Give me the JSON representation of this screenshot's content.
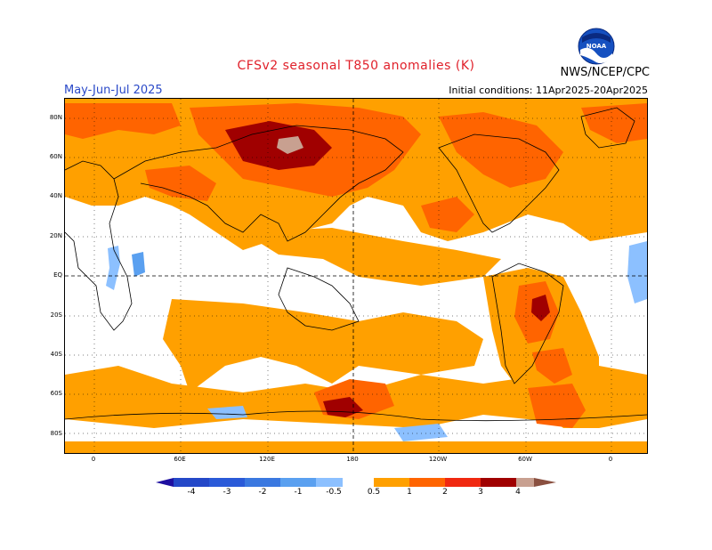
{
  "header": {
    "title": "CFSv2 seasonal T850 anomalies (K)",
    "season": "May-Jun-Jul 2025",
    "initial_conditions": "Initial conditions: 11Apr2025-20Apr2025",
    "agency": "NWS/NCEP/CPC",
    "logo_text": "NOAA",
    "logo_icon": "noaa-logo"
  },
  "axes": {
    "lat_labels": [
      "80N",
      "60N",
      "40N",
      "20N",
      "EQ",
      "20S",
      "40S",
      "60S",
      "80S"
    ],
    "lon_labels": [
      "0",
      "60E",
      "120E",
      "180",
      "120W",
      "60W",
      "0"
    ]
  },
  "legend": {
    "labels": [
      "-4",
      "-3",
      "-2",
      "-1",
      "-0.5",
      "0.5",
      "1",
      "2",
      "3",
      "4"
    ],
    "colors": {
      "n4": "#1e0fa0",
      "n3": "#2448c8",
      "n2": "#3a78e0",
      "n1": "#5aa0f0",
      "n05": "#8cc0ff",
      "zero": "#ffffff",
      "p05": "#ffa000",
      "p1": "#ff6400",
      "p2": "#f02810",
      "p3": "#a00000",
      "p4": "#c8a090",
      "p5": "#8a5040"
    }
  }
}
